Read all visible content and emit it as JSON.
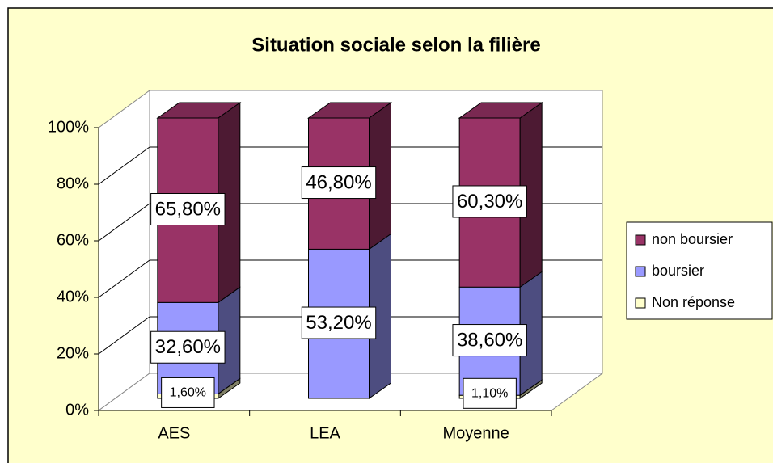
{
  "chart_data": {
    "type": "bar3d_stacked",
    "title": "Situation sociale selon la filière",
    "categories": [
      "AES",
      "LEA",
      "Moyenne"
    ],
    "series": [
      {
        "name": "Non réponse",
        "color": "#ffffcc",
        "values": [
          1.6,
          null,
          1.1
        ],
        "value_labels": [
          "1,60%",
          null,
          "1,10%"
        ]
      },
      {
        "name": "boursier",
        "color": "#9999ff",
        "values": [
          32.6,
          53.2,
          38.6
        ],
        "value_labels": [
          "32,60%",
          "53,20%",
          "38,60%"
        ]
      },
      {
        "name": "non boursier",
        "color": "#993366",
        "values": [
          65.8,
          46.8,
          60.3
        ],
        "value_labels": [
          "65,80%",
          "46,80%",
          "60,30%"
        ]
      }
    ],
    "ylim": [
      0,
      100
    ],
    "yticks": [
      {
        "value": 0,
        "label": "0%"
      },
      {
        "value": 20,
        "label": "20%"
      },
      {
        "value": 40,
        "label": "40%"
      },
      {
        "value": 60,
        "label": "60%"
      },
      {
        "value": 80,
        "label": "80%"
      },
      {
        "value": 100,
        "label": "100%"
      }
    ],
    "grid": true,
    "legend": "right"
  }
}
